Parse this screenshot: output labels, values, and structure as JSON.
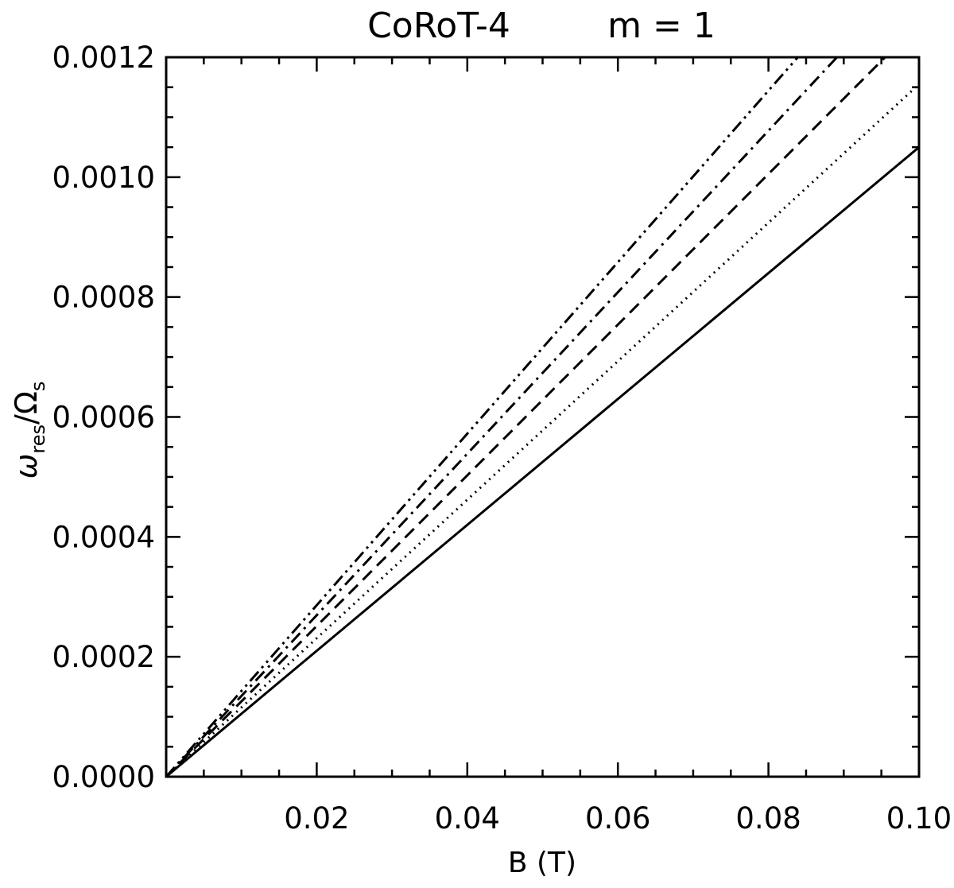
{
  "chart_data": {
    "type": "line",
    "title": "CoRoT-4",
    "subtitle": "m = 1",
    "xlabel": "B (T)",
    "ylabel": {
      "omega": "ω",
      "omega_sub": "res",
      "slash": "/",
      "Omega": "Ω",
      "Omega_sub": "s"
    },
    "xlim": [
      0.0,
      0.1
    ],
    "ylim": [
      0.0,
      0.0012
    ],
    "xticks": [
      {
        "value": 0.02,
        "label": "0.02"
      },
      {
        "value": 0.04,
        "label": "0.04"
      },
      {
        "value": 0.06,
        "label": "0.06"
      },
      {
        "value": 0.08,
        "label": "0.08"
      },
      {
        "value": 0.1,
        "label": "0.10"
      }
    ],
    "yticks": [
      {
        "value": 0.0,
        "label": "0.0000"
      },
      {
        "value": 0.0002,
        "label": "0.0002"
      },
      {
        "value": 0.0004,
        "label": "0.0004"
      },
      {
        "value": 0.0006,
        "label": "0.0006"
      },
      {
        "value": 0.0008,
        "label": "0.0008"
      },
      {
        "value": 0.001,
        "label": "0.0010"
      },
      {
        "value": 0.0012,
        "label": "0.0012"
      }
    ],
    "grid": false,
    "series": [
      {
        "style": "solid",
        "x": [
          0.0,
          0.1
        ],
        "y": [
          0.0,
          0.00105
        ]
      },
      {
        "style": "dotted",
        "x": [
          0.0,
          0.1
        ],
        "y": [
          0.0,
          0.001155
        ]
      },
      {
        "style": "dashed",
        "x": [
          0.0,
          0.0955
        ],
        "y": [
          0.0,
          0.0012
        ]
      },
      {
        "style": "dash-dot",
        "x": [
          0.0,
          0.0891
        ],
        "y": [
          0.0,
          0.0012
        ]
      },
      {
        "style": "dash-dot-dot",
        "x": [
          0.0,
          0.0839
        ],
        "y": [
          0.0,
          0.0012
        ]
      }
    ]
  }
}
